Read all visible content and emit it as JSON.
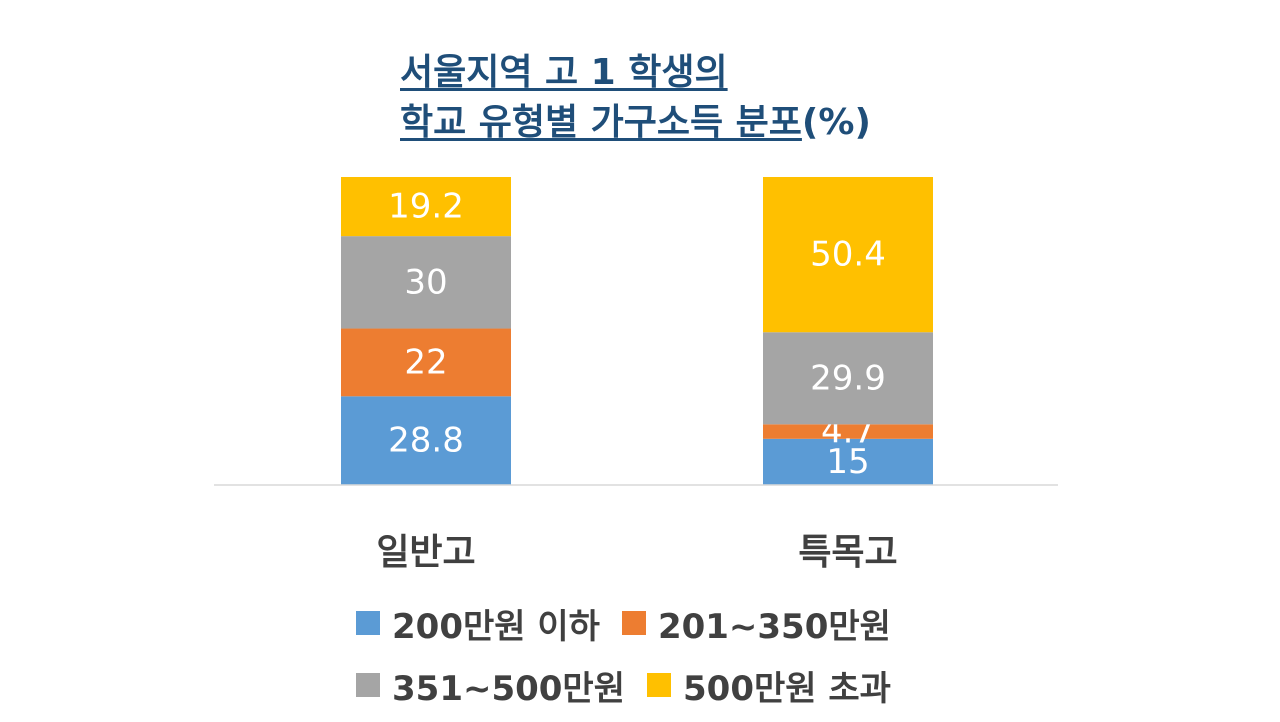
{
  "chart_data": {
    "type": "bar",
    "stacked": true,
    "title_line1": "서울지역 고 1 학생의",
    "title_line2": "학교 유형별 가구소득 분포",
    "title_suffix": "(%)",
    "xlabel": "",
    "ylabel": "",
    "ylim": [
      0,
      100
    ],
    "grid": false,
    "legend_position": "bottom",
    "categories": [
      "일반고",
      "특목고"
    ],
    "series": [
      {
        "name": "200만원 이하",
        "color": "#5b9bd5",
        "values": [
          28.8,
          15
        ]
      },
      {
        "name": "201~350만원",
        "color": "#ed7d31",
        "values": [
          22,
          4.7
        ]
      },
      {
        "name": "351~500만원",
        "color": "#a5a5a5",
        "values": [
          30,
          29.9
        ]
      },
      {
        "name": "500만원 초과",
        "color": "#ffc000",
        "values": [
          19.2,
          50.4
        ]
      }
    ]
  }
}
